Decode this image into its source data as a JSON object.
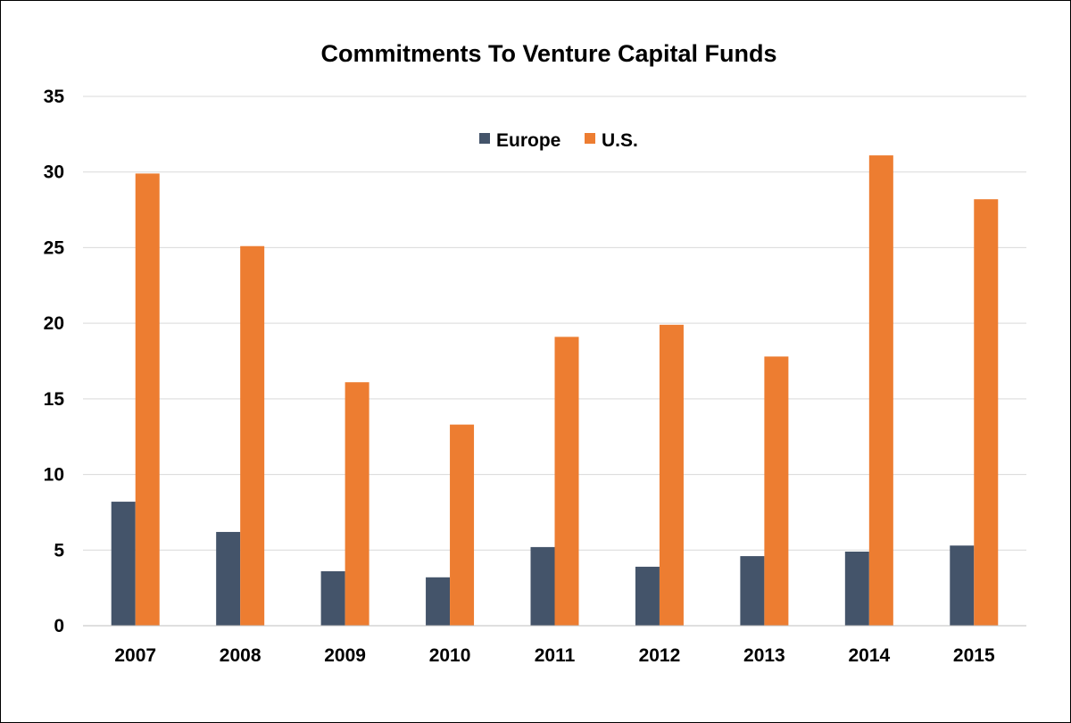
{
  "chart_data": {
    "type": "bar",
    "title": "Commitments To Venture Capital Funds",
    "xlabel": "",
    "ylabel": "",
    "categories": [
      "2007",
      "2008",
      "2009",
      "2010",
      "2011",
      "2012",
      "2013",
      "2014",
      "2015"
    ],
    "series": [
      {
        "name": "Europe",
        "color": "#44546a",
        "values": [
          8.2,
          6.2,
          3.6,
          3.2,
          5.2,
          3.9,
          4.6,
          4.9,
          5.3
        ]
      },
      {
        "name": "U.S.",
        "color": "#ed7d31",
        "values": [
          29.9,
          25.1,
          16.1,
          13.3,
          19.1,
          19.9,
          17.8,
          31.1,
          28.2
        ]
      }
    ],
    "ylim": [
      0,
      35
    ],
    "yticks": [
      "0",
      "5",
      "10",
      "15",
      "20",
      "25",
      "30",
      "35"
    ],
    "grid": true,
    "legend_position": "top-center"
  }
}
